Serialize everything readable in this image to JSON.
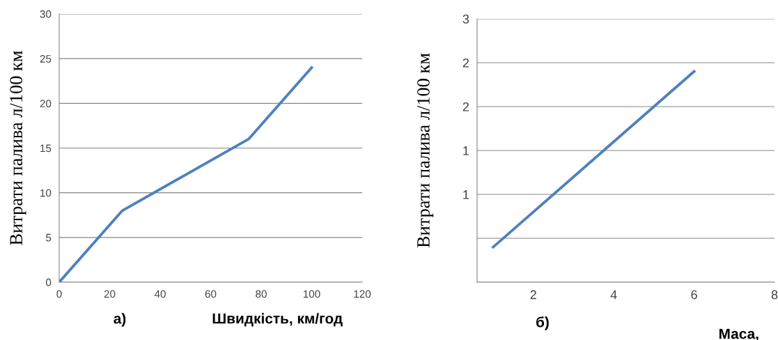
{
  "chart_data": [
    {
      "type": "line",
      "xlabel": "Швидкість, км/год",
      "ylabel": "Витрати палива л/100 км",
      "annotations": [
        "а)"
      ],
      "x": [
        0,
        25,
        75,
        100
      ],
      "series": [
        {
          "color": "#4f81bd",
          "values": [
            0,
            8,
            16,
            24
          ]
        }
      ],
      "xlim": [
        0,
        120
      ],
      "xticks": [
        0,
        20,
        40,
        60,
        80,
        100,
        120
      ],
      "ylim": [
        0,
        30
      ],
      "yticks": [
        0,
        5,
        10,
        15,
        20,
        25,
        30
      ],
      "grid": "y",
      "legend": false,
      "marker": "none",
      "line_style": "solid"
    },
    {
      "type": "line",
      "xlabel": "Маса,",
      "ylabel": "Витрати палива л/100 км",
      "annotations": [
        "б)"
      ],
      "x": [
        1,
        6
      ],
      "series": [
        {
          "color": "#4f81bd",
          "values": [
            0.4,
            2.4
          ]
        }
      ],
      "xlim": [
        0.6,
        8
      ],
      "xticks": [
        2,
        4,
        6,
        8
      ],
      "ylim": [
        0,
        3
      ],
      "yticks": [
        {
          "value": 0,
          "label": null
        },
        {
          "value": 0.5,
          "label": null
        },
        {
          "value": 1,
          "label": "1"
        },
        {
          "value": 1.5,
          "label": "1"
        },
        {
          "value": 2,
          "label": "2"
        },
        {
          "value": 2.5,
          "label": "2"
        },
        {
          "value": 3,
          "label": "3"
        }
      ],
      "grid": "y",
      "legend": false,
      "marker": "none",
      "line_style": "solid"
    }
  ]
}
